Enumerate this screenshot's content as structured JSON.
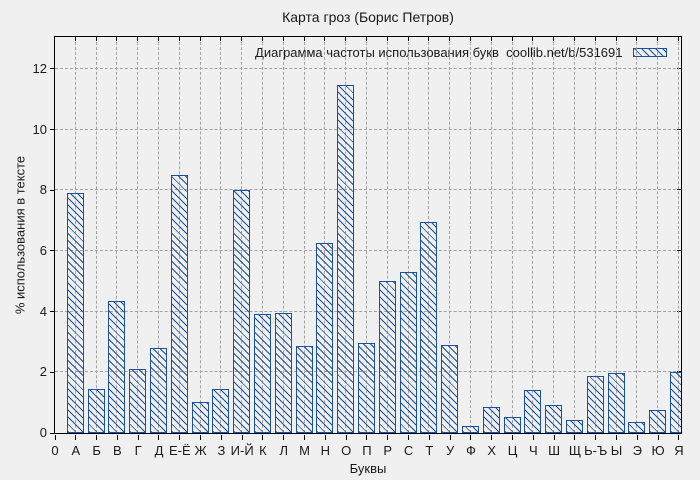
{
  "chart_data": {
    "type": "bar",
    "title": "Карта гроз (Борис Петров)",
    "xlabel": "Буквы",
    "ylabel": "% использования в тексте",
    "origin_tick_label": "0",
    "categories": [
      "А",
      "Б",
      "В",
      "Г",
      "Д",
      "Е-Ё",
      "Ж",
      "З",
      "И-Й",
      "К",
      "Л",
      "М",
      "Н",
      "О",
      "П",
      "Р",
      "С",
      "Т",
      "У",
      "Ф",
      "Х",
      "Ц",
      "Ч",
      "Ш",
      "Щ",
      "Ь-Ъ",
      "Ы",
      "Э",
      "Ю",
      "Я"
    ],
    "values": [
      7.9,
      1.45,
      4.35,
      2.1,
      2.8,
      8.5,
      1.0,
      1.45,
      8.0,
      3.9,
      3.95,
      2.85,
      6.25,
      11.45,
      2.95,
      5.0,
      5.3,
      6.95,
      2.9,
      0.2,
      0.85,
      0.5,
      1.4,
      0.9,
      0.4,
      1.85,
      1.95,
      0.35,
      0.75,
      2.0
    ],
    "yticks": [
      0,
      2,
      4,
      6,
      8,
      10,
      12
    ],
    "ylim": [
      0,
      13.05
    ],
    "grid": true,
    "legend": {
      "label": "Диаграмма частоты использования букв  coollib.net/b/531691",
      "position": "top-right-inside",
      "swatch": "blue-hatched-box"
    },
    "colors": {
      "bar": "#1b4fa0",
      "background": "#f0f0f0",
      "grid": "#a2a2a2",
      "text": "#1a1a1a",
      "border": "#000000"
    }
  }
}
